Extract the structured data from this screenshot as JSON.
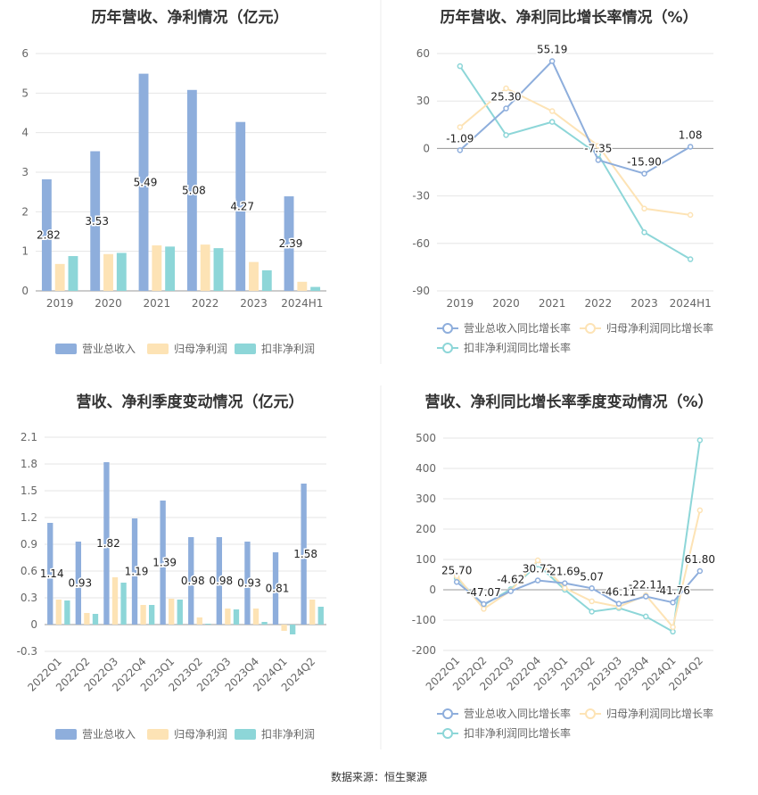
{
  "colors": {
    "revenue": "#8eaedc",
    "net_profit": "#fde3b5",
    "deducted_profit": "#8dd6d8",
    "grid": "#e6e6e6",
    "axis_text": "#666666",
    "title": "#333333"
  },
  "chart_data": [
    {
      "type": "bar",
      "title": "历年营收、净利情况（亿元）",
      "categories": [
        "2019",
        "2020",
        "2021",
        "2022",
        "2023",
        "2024H1"
      ],
      "series": [
        {
          "name": "营业总收入",
          "values": [
            2.82,
            3.53,
            5.49,
            5.08,
            4.27,
            2.39
          ],
          "labels": [
            "2.82",
            "3.53",
            "5.49",
            "5.08",
            "4.27",
            "2.39"
          ]
        },
        {
          "name": "归母净利润",
          "values": [
            0.68,
            0.93,
            1.15,
            1.17,
            0.73,
            0.23
          ]
        },
        {
          "name": "扣非净利润",
          "values": [
            0.88,
            0.96,
            1.12,
            1.08,
            0.52,
            0.1
          ]
        }
      ],
      "yticks": [
        "0",
        "1",
        "2",
        "3",
        "4",
        "5",
        "6"
      ],
      "ylim": [
        0,
        6
      ],
      "legend": "bottom"
    },
    {
      "type": "line",
      "title": "历年营收、净利同比增长率情况（%）",
      "categories": [
        "2019",
        "2020",
        "2021",
        "2022",
        "2023",
        "2024H1"
      ],
      "series": [
        {
          "name": "营业总收入同比增长率",
          "values": [
            -1.09,
            25.3,
            55.19,
            -7.35,
            -15.9,
            1.08
          ],
          "labels": [
            "-1.09",
            "25.30",
            "55.19",
            "-7.35",
            "-15.90",
            "1.08"
          ]
        },
        {
          "name": "归母净利润同比增长率",
          "values": [
            13.5,
            38.0,
            23.6,
            1.7,
            -38.0,
            -42.0
          ]
        },
        {
          "name": "扣非净利润同比增长率",
          "values": [
            52.0,
            8.5,
            16.8,
            -3.8,
            -53.0,
            -70.0
          ]
        }
      ],
      "yticks": [
        "-90",
        "-60",
        "-30",
        "0",
        "30",
        "60"
      ],
      "ylim": [
        -90,
        60
      ],
      "legend": "bottom"
    },
    {
      "type": "bar",
      "title": "营收、净利季度变动情况（亿元）",
      "categories": [
        "2022Q1",
        "2022Q2",
        "2022Q3",
        "2022Q4",
        "2023Q1",
        "2023Q2",
        "2023Q3",
        "2023Q4",
        "2024Q1",
        "2024Q2"
      ],
      "series": [
        {
          "name": "营业总收入",
          "values": [
            1.14,
            0.93,
            1.82,
            1.19,
            1.39,
            0.98,
            0.98,
            0.93,
            0.81,
            1.58
          ],
          "labels": [
            "1.14",
            "0.93",
            "1.82",
            "1.19",
            "1.39",
            "0.98",
            "0.98",
            "0.93",
            "0.81",
            "1.58"
          ]
        },
        {
          "name": "归母净利润",
          "values": [
            0.28,
            0.13,
            0.53,
            0.22,
            0.29,
            0.08,
            0.18,
            0.18,
            -0.07,
            0.28
          ]
        },
        {
          "name": "扣非净利润",
          "values": [
            0.27,
            0.12,
            0.47,
            0.22,
            0.28,
            0.01,
            0.17,
            0.03,
            -0.11,
            0.2
          ]
        }
      ],
      "yticks": [
        "-0.3",
        "0",
        "0.3",
        "0.6",
        "0.9",
        "1.2",
        "1.5",
        "1.8",
        "2.1"
      ],
      "ylim": [
        -0.3,
        2.1
      ],
      "legend": "bottom"
    },
    {
      "type": "line",
      "title": "营收、净利同比增长率季度变动情况（%）",
      "categories": [
        "2022Q1",
        "2022Q2",
        "2022Q3",
        "2022Q4",
        "2023Q1",
        "2023Q2",
        "2023Q3",
        "2023Q4",
        "2024Q1",
        "2024Q2"
      ],
      "series": [
        {
          "name": "营业总收入同比增长率",
          "values": [
            25.7,
            -47.07,
            -4.62,
            30.72,
            21.69,
            5.07,
            -46.11,
            -22.11,
            -41.76,
            61.8
          ],
          "labels": [
            "25.70",
            "-47.07",
            "-4.62",
            "30.72",
            "21.69",
            "5.07",
            "-46.11",
            "-22.11",
            "-41.76",
            "61.80"
          ]
        },
        {
          "name": "归母净利润同比增长率",
          "values": [
            45,
            -63,
            -3,
            97,
            6,
            -38,
            -56,
            -18,
            -123,
            262
          ]
        },
        {
          "name": "扣非净利润同比增长率",
          "values": [
            38,
            -50,
            2,
            83,
            0,
            -72,
            -60,
            -88,
            -138,
            493
          ]
        }
      ],
      "yticks": [
        "-200",
        "-100",
        "0",
        "100",
        "200",
        "300",
        "400",
        "500"
      ],
      "ylim": [
        -200,
        500
      ],
      "legend": "bottom"
    }
  ],
  "source": "数据来源：恒生聚源"
}
